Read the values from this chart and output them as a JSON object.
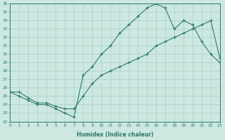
{
  "xlabel": "Humidex (Indice chaleur)",
  "bg_color": "#cce8e0",
  "line_color": "#2d7a6a",
  "grid_color": "#aacfc8",
  "curve1_x": [
    0,
    1,
    2,
    3,
    4,
    5,
    6,
    7,
    8,
    9,
    10,
    11,
    12,
    13,
    14,
    15,
    16,
    17,
    18,
    19,
    20,
    21,
    22,
    23
  ],
  "curve1_y": [
    25.5,
    25.0,
    24.5,
    24.0,
    24.0,
    23.5,
    23.0,
    22.5,
    27.5,
    28.5,
    30.0,
    31.0,
    32.5,
    33.5,
    34.5,
    35.5,
    36.0,
    35.5,
    33.0,
    34.0,
    33.5,
    31.5,
    30.0,
    29.0
  ],
  "curve2_x": [
    0,
    1,
    2,
    3,
    4,
    5,
    6,
    7,
    8,
    9,
    10,
    11,
    12,
    13,
    14,
    15,
    16,
    17,
    18,
    19,
    20,
    21,
    22,
    23
  ],
  "curve2_y": [
    25.5,
    25.5,
    24.8,
    24.2,
    24.2,
    23.8,
    23.5,
    23.5,
    25.0,
    26.5,
    27.5,
    28.0,
    28.5,
    29.0,
    29.5,
    30.0,
    31.0,
    31.5,
    32.0,
    32.5,
    33.0,
    33.5,
    34.0,
    29.5
  ],
  "xlim": [
    0,
    23
  ],
  "ylim": [
    22,
    36
  ],
  "ytick_min": 22,
  "ytick_max": 36
}
